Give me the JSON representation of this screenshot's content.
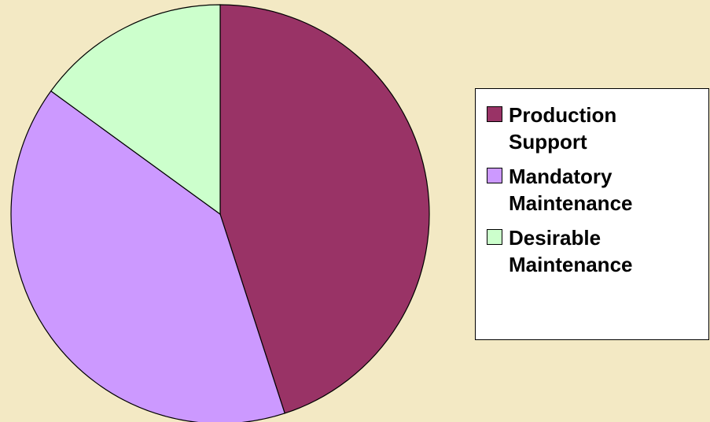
{
  "chart_data": {
    "type": "pie",
    "categories": [
      "Production Support",
      "Mandatory Maintenance",
      "Desirable Maintenance"
    ],
    "values": [
      45,
      40,
      15
    ],
    "colors": [
      "#993366",
      "#cc99ff",
      "#ccffcc"
    ],
    "legend": "right"
  }
}
